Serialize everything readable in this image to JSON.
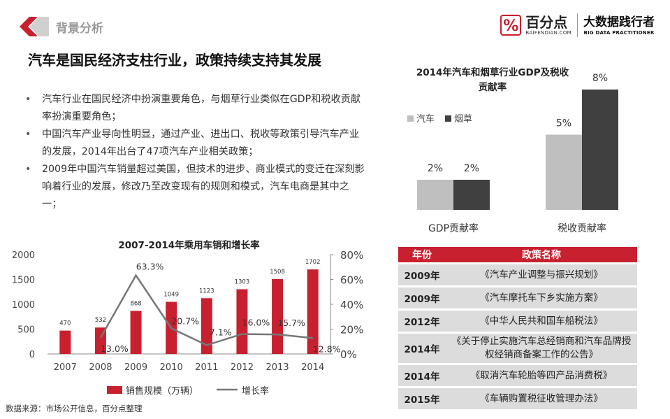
{
  "header": {
    "section_title": "背景分析",
    "brand_name": "百分点",
    "brand_domain": "BAIFENDIAN.COM",
    "brand_slogan": "大数据践行者",
    "brand_slogan_en": "BIG DATA PRACTITIONER",
    "accent_color": "#c8202f"
  },
  "main_title": "汽车是国民经济支柱行业，政策持续支持其发展",
  "bullets": [
    "汽车行业在国民经济中扮演重要角色，与烟草行业类似在GDP和税收贡献率扮演重要角色；",
    "中国汽车产业导向性明显，通过产业、进出口、税收等政策引导汽车产业的发展，2014年出台了47项汽车产业相关政策；",
    "2009年中国汽车销量超过美国，但技术的进步、商业模式的变迁在深刻影响着行业的发展，修改乃至改变现有的规则和模式，汽车电商是其中之一；"
  ],
  "chart_data": [
    {
      "type": "bar",
      "title": "2007-2014年乘用车销和增长率",
      "categories": [
        "2007",
        "2008",
        "2009",
        "2010",
        "2011",
        "2012",
        "2013",
        "2014"
      ],
      "series": [
        {
          "name": "销售规模（万辆）",
          "type": "bar",
          "axis": "left",
          "color": "#c8202f",
          "values": [
            470,
            532,
            868,
            1049,
            1123,
            1303,
            1508,
            1702
          ],
          "labels": [
            "470",
            "532",
            "868",
            "1049",
            "1123",
            "1303",
            "1508",
            "1702"
          ]
        },
        {
          "name": "增长率",
          "type": "line",
          "axis": "right",
          "color": "#777777",
          "values": [
            null,
            13.0,
            63.3,
            20.7,
            7.1,
            16.0,
            15.7,
            12.8
          ],
          "labels": [
            "",
            "13.0%",
            "63.3%",
            "20.7%",
            "7.1%",
            "16.0%",
            "15.7%",
            "12.8%"
          ]
        }
      ],
      "y_left": {
        "ticks": [
          "0",
          "500",
          "1000",
          "1500",
          "2000"
        ],
        "range": [
          0,
          2000
        ]
      },
      "y_right": {
        "ticks": [
          "0%",
          "20%",
          "40%",
          "60%",
          "80%"
        ],
        "range": [
          0,
          80
        ]
      },
      "grid": false,
      "legend": "bottom"
    },
    {
      "type": "bar",
      "title": "2014年汽车和烟草行业GDP及税收贡献率",
      "categories": [
        "GDP贡献率",
        "税收贡献率"
      ],
      "series": [
        {
          "name": "汽车",
          "color": "#bfbfbf",
          "values": [
            2,
            5
          ],
          "labels": [
            "2%",
            "5%"
          ]
        },
        {
          "name": "烟草",
          "color": "#404040",
          "values": [
            2,
            8
          ],
          "labels": [
            "2%",
            "8%"
          ]
        }
      ],
      "ylim": [
        0,
        8
      ],
      "grid": false,
      "legend": "top-left"
    }
  ],
  "policy_table": {
    "headers": [
      "年份",
      "政策名称"
    ],
    "rows": [
      {
        "year": "2009年",
        "name": "《汽车产业调整与振兴规划》"
      },
      {
        "year": "2009年",
        "name": "《汽车摩托车下乡实施方案》"
      },
      {
        "year": "2012年",
        "name": "《中华人民共和国车船税法》"
      },
      {
        "year": "2014年",
        "name": "《关于停止实施汽车总经销商和汽车品牌授权经销商备案工作的公告》"
      },
      {
        "year": "2014年",
        "name": "《取消汽车轮胎等四产品消费税》"
      },
      {
        "year": "2015年",
        "name": "《车辆购置税征收管理办法》"
      }
    ]
  },
  "source": "数据来源：市场公开信息，百分点整理"
}
